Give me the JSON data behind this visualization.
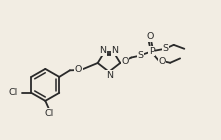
{
  "bg_color": "#f2ede3",
  "bond_color": "#2a2a2a",
  "lw": 1.3,
  "fs": 6.8,
  "xlim": [
    0,
    10
  ],
  "ylim": [
    0,
    6.4
  ]
}
